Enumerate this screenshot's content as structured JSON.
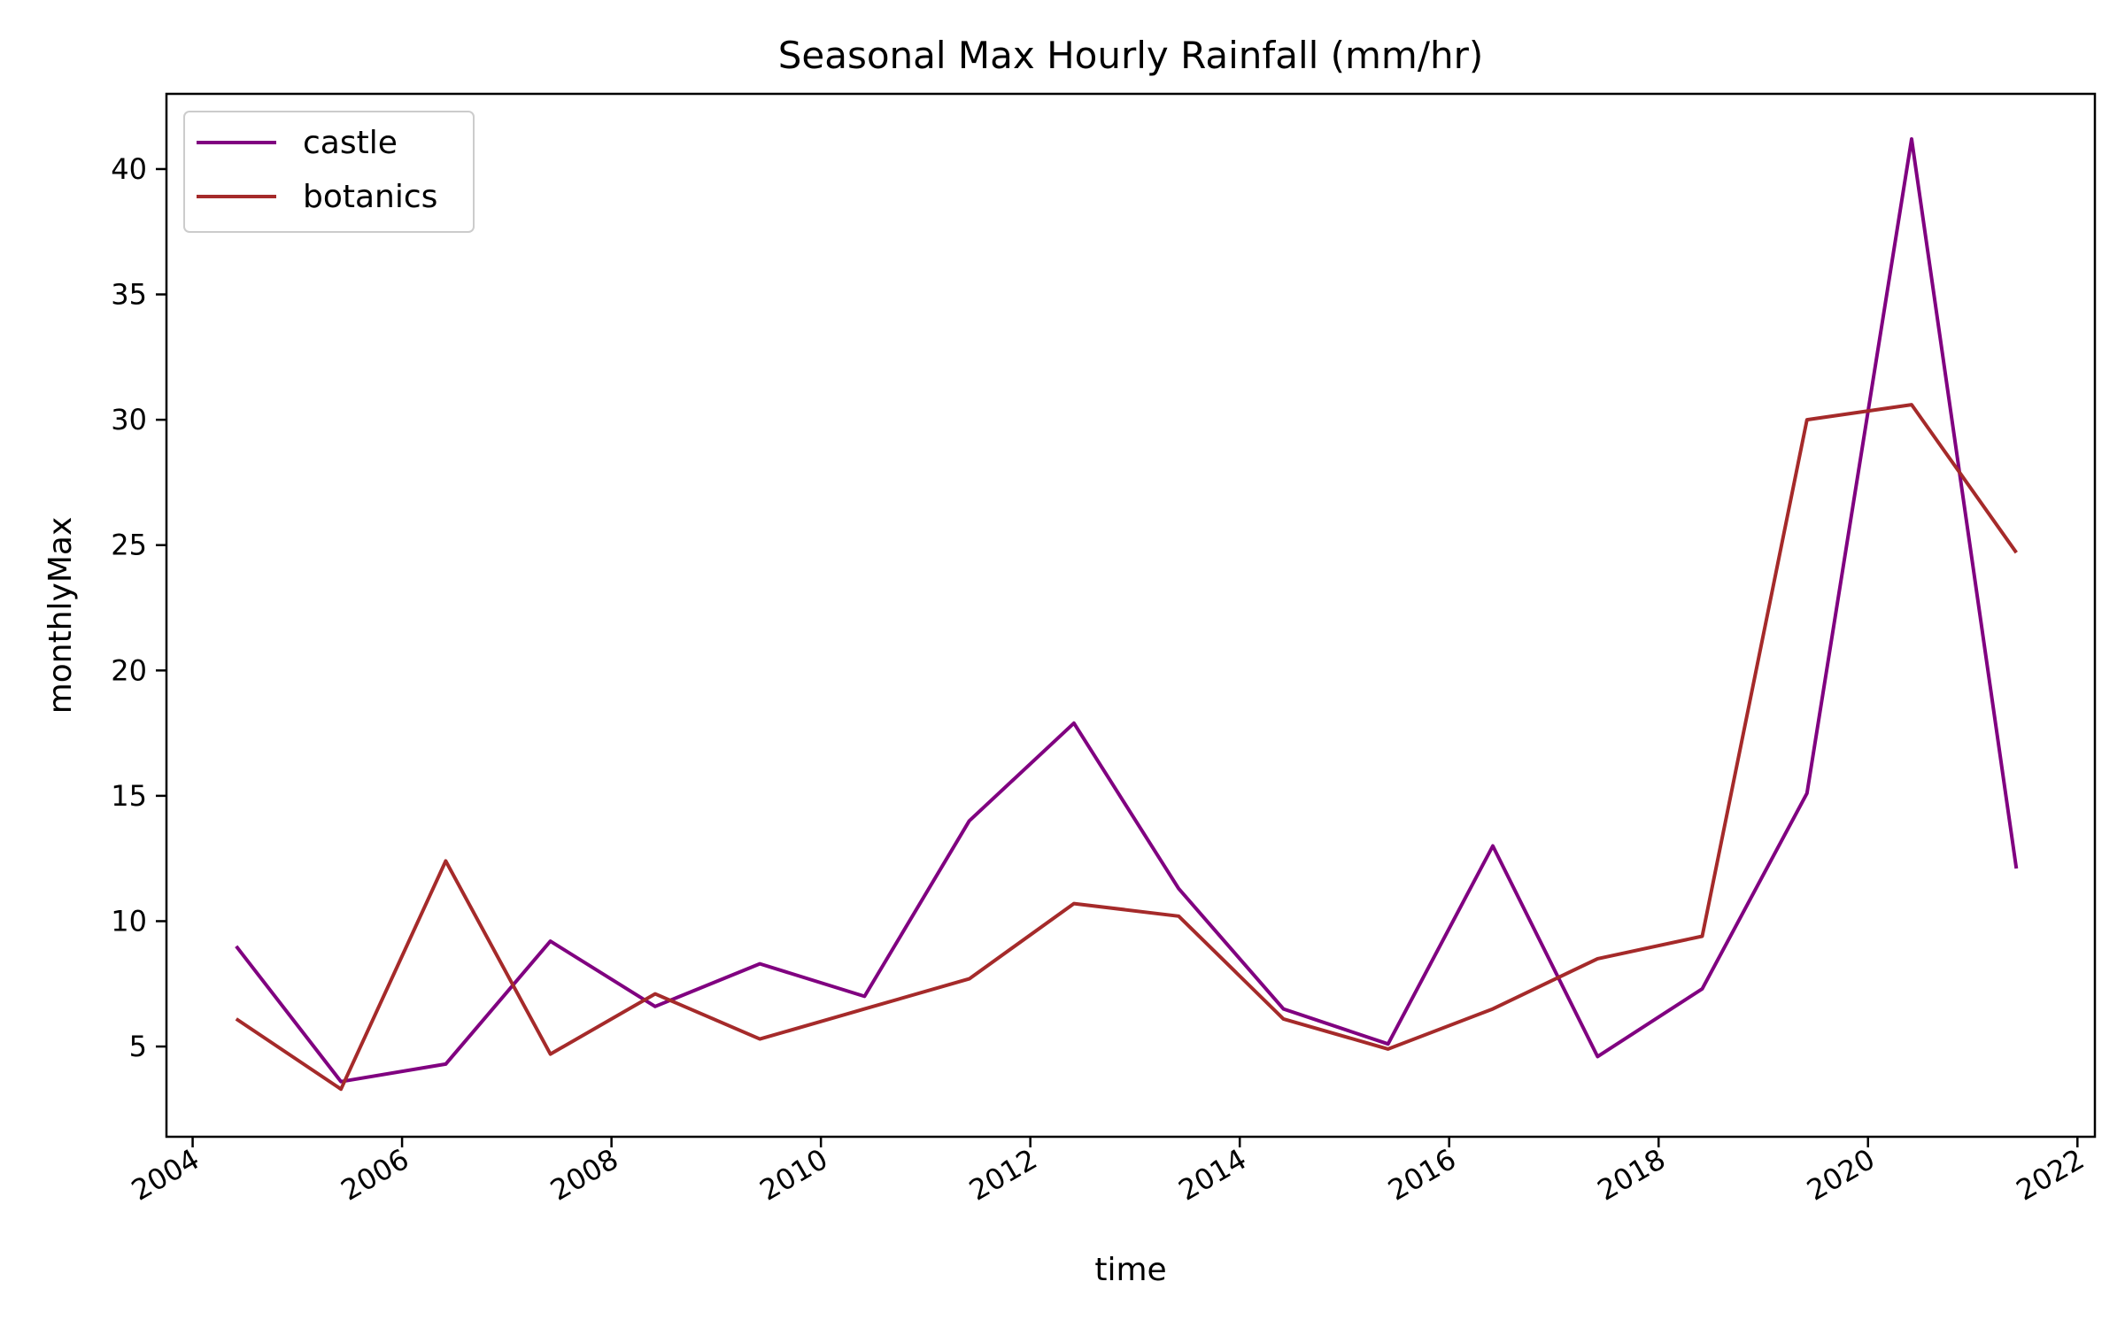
{
  "chart_data": {
    "type": "line",
    "title": "Seasonal Max Hourly Rainfall (mm/hr)",
    "xlabel": "time",
    "ylabel": "monthlyMax",
    "x": [
      "2004-06",
      "2005-06",
      "2006-06",
      "2007-06",
      "2008-06",
      "2009-06",
      "2010-06",
      "2011-06",
      "2012-06",
      "2013-06",
      "2014-06",
      "2015-06",
      "2016-06",
      "2017-06",
      "2018-06",
      "2019-06",
      "2020-06",
      "2021-06"
    ],
    "xlim": [
      "2003-10",
      "2022-03"
    ],
    "ylim": [
      1.4,
      43
    ],
    "xticks": [
      "2004",
      "2006",
      "2008",
      "2010",
      "2012",
      "2014",
      "2016",
      "2018",
      "2020",
      "2022"
    ],
    "yticks": [
      5,
      10,
      15,
      20,
      25,
      30,
      35,
      40
    ],
    "grid": false,
    "legend_position": "upper-left",
    "series": [
      {
        "name": "castle",
        "color": "#800080",
        "values": [
          9.0,
          3.6,
          4.3,
          9.2,
          6.6,
          8.3,
          7.0,
          14.0,
          17.9,
          11.3,
          6.5,
          5.1,
          13.0,
          4.6,
          7.3,
          15.1,
          41.2,
          12.1
        ]
      },
      {
        "name": "botanics",
        "color": "#a52a2a",
        "values": [
          6.1,
          3.3,
          12.4,
          4.7,
          7.1,
          5.3,
          6.5,
          7.7,
          10.7,
          10.2,
          6.1,
          4.9,
          6.5,
          8.5,
          9.4,
          30.0,
          30.6,
          24.7
        ]
      }
    ]
  }
}
